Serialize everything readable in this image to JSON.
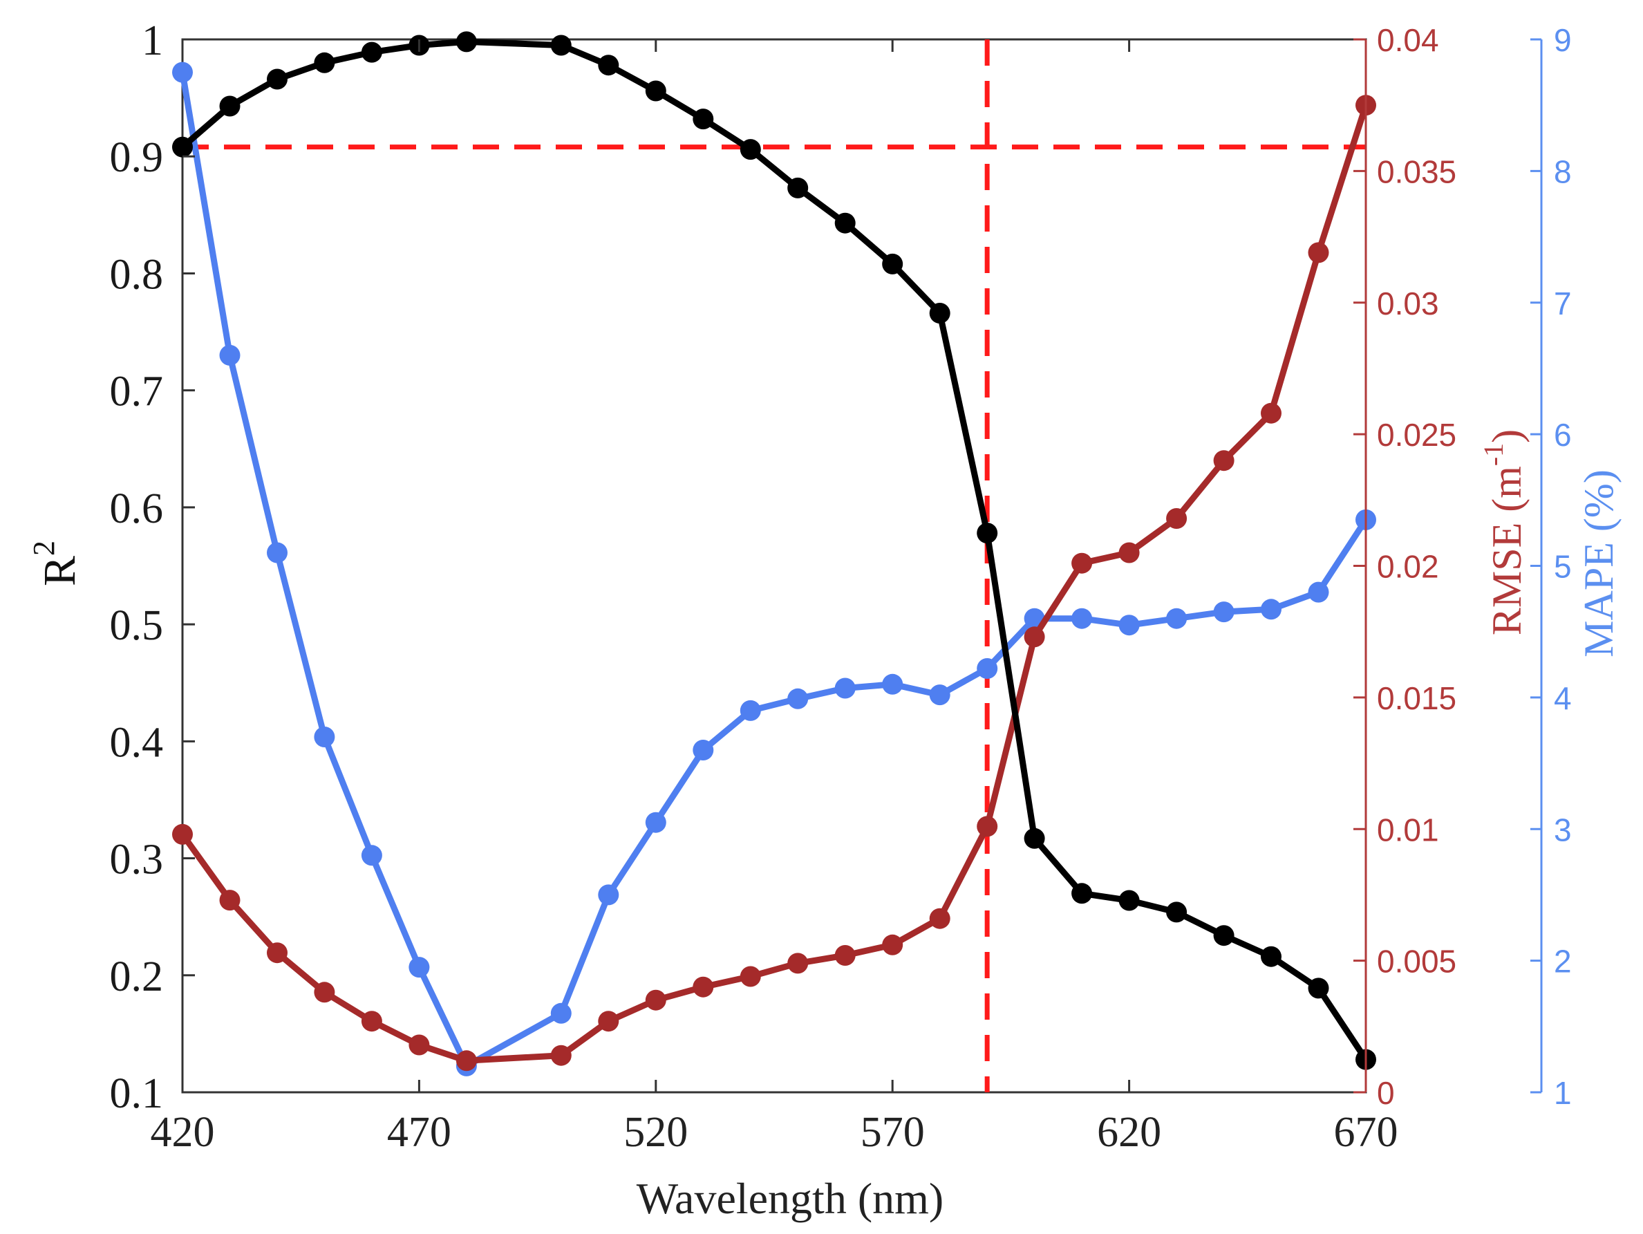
{
  "chart_data": {
    "type": "line",
    "xlabel": "Wavelength (nm)",
    "x_ticks": [
      420,
      470,
      520,
      570,
      620,
      670
    ],
    "xlim": [
      420,
      670
    ],
    "axes": {
      "left": {
        "label_main": "R",
        "label_sup": "2",
        "ylim": [
          0.1,
          1
        ],
        "ticks": [
          0.1,
          0.2,
          0.3,
          0.4,
          0.5,
          0.6,
          0.7,
          0.8,
          0.9,
          1
        ],
        "tick_labels": [
          "0.1",
          "0.2",
          "0.3",
          "0.4",
          "0.5",
          "0.6",
          "0.7",
          "0.8",
          "0.9",
          "1"
        ],
        "color": "#1a1a1a"
      },
      "right1": {
        "label_main": "RMSE (m",
        "label_sup": "-1",
        "label_end": ")",
        "ylim": [
          0,
          0.04
        ],
        "ticks": [
          0,
          0.005,
          0.01,
          0.015,
          0.02,
          0.025,
          0.03,
          0.035,
          0.04
        ],
        "tick_labels": [
          "0",
          "0.005",
          "0.01",
          "0.015",
          "0.02",
          "0.025",
          "0.03",
          "0.035",
          "0.04"
        ],
        "color": "#b23a3a"
      },
      "right2": {
        "label_main": "MAPE (%)",
        "ylim": [
          1,
          9
        ],
        "ticks": [
          1,
          2,
          3,
          4,
          5,
          6,
          7,
          8,
          9
        ],
        "tick_labels": [
          "1",
          "2",
          "3",
          "4",
          "5",
          "6",
          "7",
          "8",
          "9"
        ],
        "color": "#5b8ff0"
      }
    },
    "series": [
      {
        "name": "R2",
        "axis": "left",
        "color": "#000000",
        "x": [
          420,
          430,
          440,
          450,
          460,
          470,
          480,
          500,
          510,
          520,
          530,
          540,
          550,
          560,
          570,
          580,
          590,
          600,
          610,
          620,
          630,
          640,
          650,
          660,
          670
        ],
        "values": [
          0.908,
          0.943,
          0.966,
          0.98,
          0.989,
          0.995,
          0.998,
          0.995,
          0.978,
          0.956,
          0.932,
          0.906,
          0.873,
          0.843,
          0.808,
          0.766,
          0.578,
          0.317,
          0.27,
          0.264,
          0.254,
          0.234,
          0.216,
          0.189,
          0.128
        ]
      },
      {
        "name": "RMSE",
        "axis": "right1",
        "color": "#a52a2a",
        "x": [
          420,
          430,
          440,
          450,
          460,
          470,
          480,
          500,
          510,
          520,
          530,
          540,
          550,
          560,
          570,
          580,
          590,
          600,
          610,
          620,
          630,
          640,
          650,
          660,
          670
        ],
        "values": [
          0.0098,
          0.0073,
          0.0053,
          0.0038,
          0.0027,
          0.0018,
          0.0012,
          0.0014,
          0.0027,
          0.0035,
          0.004,
          0.0044,
          0.0049,
          0.0052,
          0.0056,
          0.0066,
          0.0101,
          0.0173,
          0.0201,
          0.0205,
          0.0218,
          0.024,
          0.0258,
          0.0319,
          0.0375
        ]
      },
      {
        "name": "MAPE",
        "axis": "right2",
        "color": "#4f7ff0",
        "x": [
          420,
          430,
          440,
          450,
          460,
          470,
          480,
          500,
          510,
          520,
          530,
          540,
          550,
          560,
          570,
          580,
          590,
          600,
          610,
          620,
          630,
          640,
          650,
          660,
          670
        ],
        "values": [
          8.75,
          6.6,
          5.1,
          3.7,
          2.8,
          1.95,
          1.2,
          1.6,
          2.5,
          3.05,
          3.6,
          3.9,
          3.99,
          4.07,
          4.1,
          4.02,
          4.22,
          4.6,
          4.6,
          4.55,
          4.6,
          4.65,
          4.67,
          4.8,
          5.35
        ]
      }
    ],
    "reference_lines": [
      {
        "orientation": "horizontal",
        "axis": "left",
        "value": 0.908,
        "color": "#ff1a1a",
        "style": "dashed"
      },
      {
        "orientation": "vertical",
        "value": 590,
        "color": "#ff1a1a",
        "style": "dashed"
      }
    ]
  }
}
